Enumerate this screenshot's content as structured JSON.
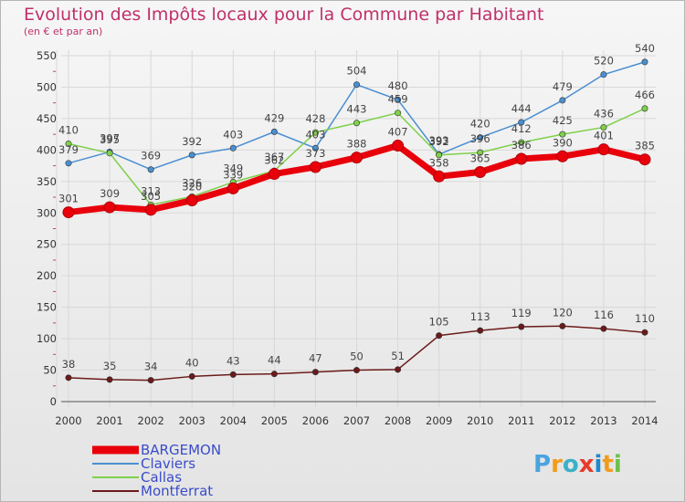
{
  "chart_data": {
    "type": "line",
    "title": "Evolution des Impôts locaux pour la Commune par Habitant",
    "subtitle": "(en € et par an)",
    "categories": [
      "2000",
      "2001",
      "2002",
      "2003",
      "2004",
      "2005",
      "2006",
      "2007",
      "2008",
      "2009",
      "2010",
      "2011",
      "2012",
      "2013",
      "2014"
    ],
    "ylim": [
      0,
      550
    ],
    "yticks": [
      0,
      50,
      100,
      150,
      200,
      250,
      300,
      350,
      400,
      450,
      500,
      550
    ],
    "grid": true,
    "legend_position": "bottom-left",
    "series": [
      {
        "name": "BARGEMON",
        "color": "#e8000b",
        "values": [
          301,
          309,
          305,
          320,
          339,
          362,
          373,
          388,
          407,
          358,
          365,
          386,
          390,
          401,
          385
        ]
      },
      {
        "name": "Claviers",
        "color": "#4a8fd0",
        "values": [
          379,
          397,
          369,
          392,
          403,
          429,
          403,
          504,
          480,
          393,
          420,
          444,
          479,
          520,
          540
        ]
      },
      {
        "name": "Callas",
        "color": "#7fd04a",
        "values": [
          410,
          395,
          313,
          326,
          349,
          367,
          428,
          443,
          459,
          392,
          396,
          412,
          425,
          436,
          466
        ]
      },
      {
        "name": "Montferrat",
        "color": "#6b1a1a",
        "values": [
          38,
          35,
          34,
          40,
          43,
          44,
          47,
          50,
          51,
          105,
          113,
          119,
          120,
          116,
          110
        ]
      }
    ]
  },
  "logo": {
    "letters": [
      "P",
      "r",
      "o",
      "x",
      "i",
      "t",
      "i"
    ],
    "colors": [
      "#4aa3e0",
      "#f29b1c",
      "#3cb0c8",
      "#e83a2a",
      "#1e88d0",
      "#f29b1c",
      "#6cc04a"
    ]
  }
}
